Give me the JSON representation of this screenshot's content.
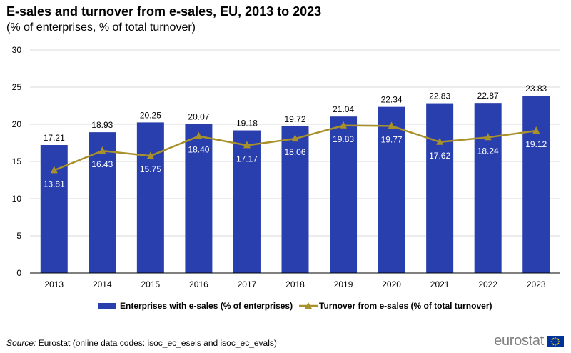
{
  "title": "E-sales and turnover from e-sales, EU, 2013 to 2023",
  "subtitle": "(% of enterprises, % of total turnover)",
  "source": {
    "label": "Source:",
    "text": " Eurostat (online data codes: isoc_ec_esels and isoc_ec_evals)"
  },
  "brand": {
    "name": "eurostat",
    "flag_icon": "eu-flag-icon"
  },
  "colors": {
    "bar": "#2A3FAE",
    "line": "#A8912A",
    "grid": "#d9d9d9",
    "axis": "#000000"
  },
  "chart_data": {
    "type": "bar",
    "categories": [
      "2013",
      "2014",
      "2015",
      "2016",
      "2017",
      "2018",
      "2019",
      "2020",
      "2021",
      "2022",
      "2023"
    ],
    "ylim": [
      0,
      30
    ],
    "yticks": [
      0,
      5,
      10,
      15,
      20,
      25,
      30
    ],
    "grid": true,
    "legend_position": "bottom",
    "series": [
      {
        "name": "Enterprises with e-sales (% of enterprises)",
        "type": "bar",
        "values": [
          17.21,
          18.93,
          20.25,
          20.07,
          19.18,
          19.72,
          21.04,
          22.34,
          22.83,
          22.87,
          23.83
        ]
      },
      {
        "name": "Turnover from e-sales (% of total turnover)",
        "type": "line",
        "marker": "triangle",
        "values": [
          13.81,
          16.43,
          15.75,
          18.4,
          17.17,
          18.06,
          19.83,
          19.77,
          17.62,
          18.24,
          19.12
        ]
      }
    ]
  }
}
